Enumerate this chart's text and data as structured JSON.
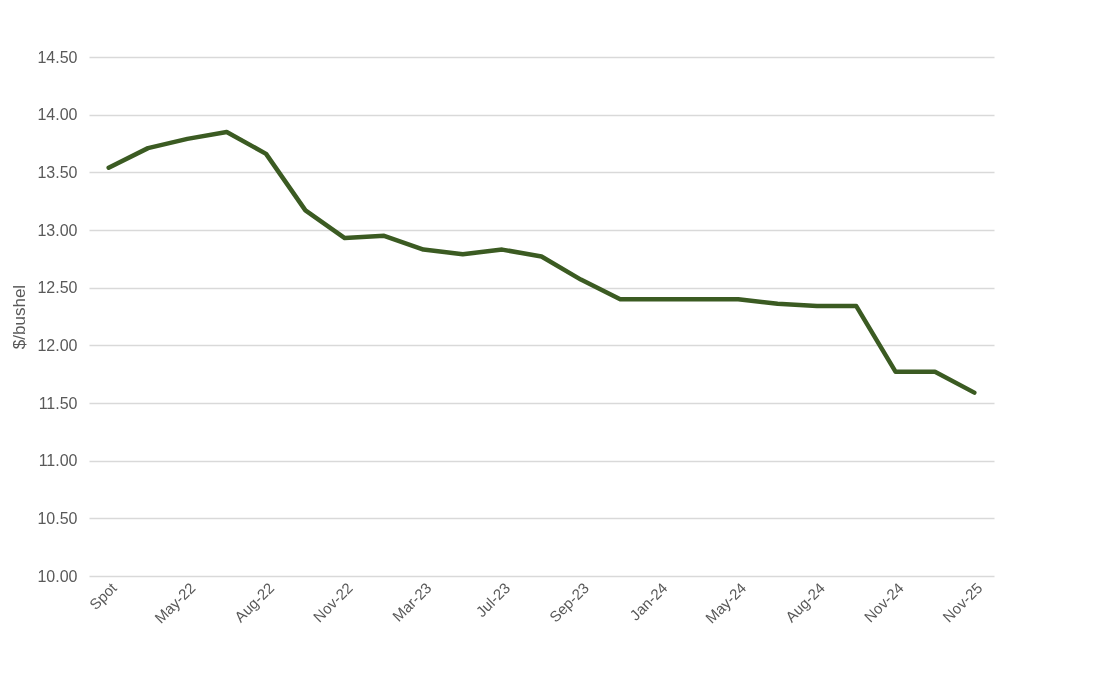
{
  "chart_data": {
    "type": "line",
    "ylabel": "$/bushel",
    "categories": [
      "Spot",
      null,
      "May-22",
      null,
      "Aug-22",
      null,
      "Nov-22",
      null,
      "Mar-23",
      null,
      "Jul-23",
      null,
      "Sep-23",
      null,
      "Jan-24",
      null,
      "May-24",
      null,
      "Aug-24",
      null,
      "Nov-24",
      null,
      "Nov-25"
    ],
    "series": [
      {
        "color": "#3b5b22",
        "values": [
          13.54,
          13.71,
          13.79,
          13.85,
          13.66,
          13.17,
          12.93,
          12.95,
          12.83,
          12.79,
          12.83,
          12.77,
          12.57,
          12.4,
          12.4,
          12.4,
          12.4,
          12.36,
          12.34,
          12.34,
          11.77,
          11.77,
          11.59
        ]
      }
    ],
    "ylim": [
      10,
      14.5
    ],
    "yticks": [
      {
        "value": 10,
        "label": "10.00"
      },
      {
        "value": 10.5,
        "label": "10.50"
      },
      {
        "value": 11,
        "label": "11.00"
      },
      {
        "value": 11.5,
        "label": "11.50"
      },
      {
        "value": 12,
        "label": "12.00"
      },
      {
        "value": 12.5,
        "label": "12.50"
      },
      {
        "value": 13,
        "label": "13.00"
      },
      {
        "value": 13.5,
        "label": "13.50"
      },
      {
        "value": 14,
        "label": "14.00"
      },
      {
        "value": 14.5,
        "label": "14.50"
      }
    ],
    "grid": "y",
    "marker": "none",
    "line_style": "solid"
  }
}
